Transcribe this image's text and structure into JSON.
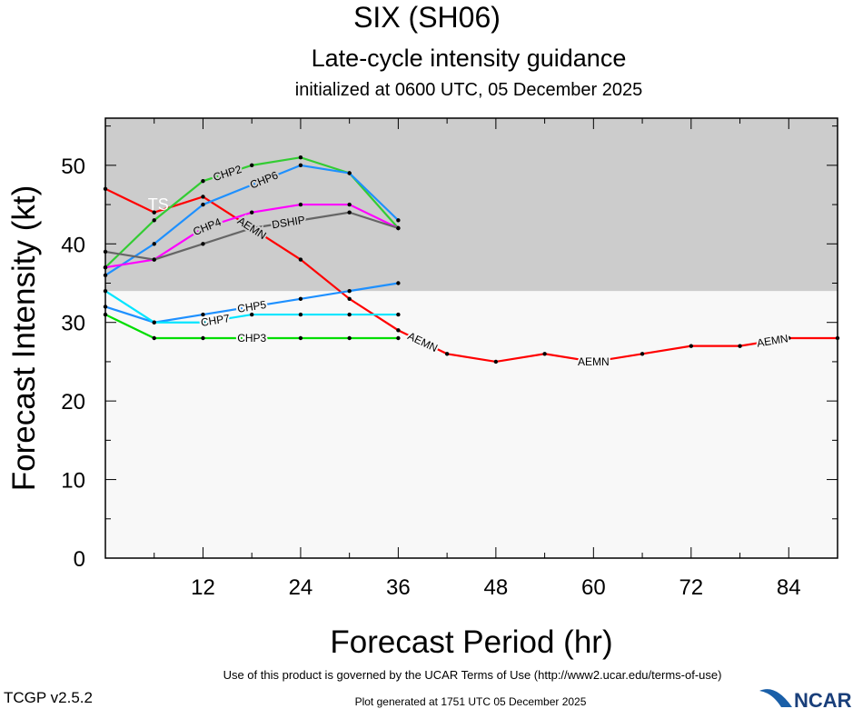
{
  "chart_data": {
    "type": "line",
    "title": "SIX (SH06)",
    "subtitle": "Late-cycle intensity guidance",
    "subtitle2": "initialized at 0600 UTC, 05 December 2025",
    "xlabel": "Forecast Period (hr)",
    "ylabel": "Forecast Intensity (kt)",
    "xlim": [
      0,
      90
    ],
    "ylim": [
      0,
      56
    ],
    "xticks": [
      12,
      24,
      36,
      48,
      60,
      72,
      84
    ],
    "yticks": [
      0,
      10,
      20,
      30,
      40,
      50
    ],
    "ts_threshold": 34,
    "ts_label": "TS",
    "colors": {
      "ts_shade": "#cccccc",
      "below_shade": "#f8f8f8"
    },
    "series": [
      {
        "name": "AEMN",
        "color": "#ff0000",
        "x": [
          0,
          6,
          12,
          18,
          24,
          30,
          36,
          42,
          48,
          54,
          60,
          66,
          72,
          78,
          84,
          90
        ],
        "values": [
          47,
          44,
          46,
          42,
          38,
          33,
          29,
          26,
          25,
          26,
          25,
          26,
          27,
          27,
          28,
          28
        ],
        "label_at": [
          18,
          39,
          60,
          82
        ]
      },
      {
        "name": "CHP2",
        "color": "#33cc33",
        "x": [
          0,
          6,
          12,
          18,
          24,
          30,
          36
        ],
        "values": [
          37,
          43,
          48,
          50,
          51,
          49,
          42
        ],
        "label_at": [
          15
        ]
      },
      {
        "name": "CHP6",
        "color": "#1e90ff",
        "x": [
          0,
          6,
          12,
          18,
          24,
          30,
          36
        ],
        "values": [
          36,
          40,
          45,
          47.5,
          50,
          49,
          43
        ],
        "label_at": [
          18
        ]
      },
      {
        "name": "CHP4",
        "color": "#ff00ff",
        "x": [
          0,
          6,
          12,
          18,
          24,
          30,
          36
        ],
        "values": [
          37,
          38,
          42,
          44,
          45,
          45,
          42
        ],
        "label_at": [
          17
        ]
      },
      {
        "name": "DSHIP",
        "color": "#666666",
        "x": [
          0,
          6,
          12,
          18,
          24,
          30,
          36
        ],
        "values": [
          39,
          38,
          40,
          42,
          43,
          44,
          42
        ],
        "label_at": [
          18
        ]
      },
      {
        "name": "CHP5",
        "color": "#1e90ff",
        "x": [
          0,
          6,
          12,
          18,
          24,
          30,
          36
        ],
        "values": [
          32,
          30,
          31,
          32,
          33,
          34,
          35
        ],
        "label_at": [
          18
        ]
      },
      {
        "name": "CHP7",
        "color": "#00e5ff",
        "x": [
          0,
          6,
          12,
          18,
          24,
          30,
          36
        ],
        "values": [
          34,
          30,
          30,
          31,
          31,
          31,
          31
        ],
        "label_at": [
          18
        ]
      },
      {
        "name": "CHP3",
        "color": "#00dd00",
        "x": [
          0,
          6,
          12,
          18,
          24,
          30,
          36
        ],
        "values": [
          31,
          28,
          28,
          28,
          28,
          28,
          28
        ],
        "label_at": [
          18
        ]
      }
    ]
  },
  "footer": {
    "terms": "Use of this product is governed by the UCAR Terms of Use (http://www2.ucar.edu/terms-of-use)",
    "version": "TCGP v2.5.2",
    "generated": "Plot generated at 1751 UTC   05 December 2025",
    "logo": "NCAR"
  }
}
